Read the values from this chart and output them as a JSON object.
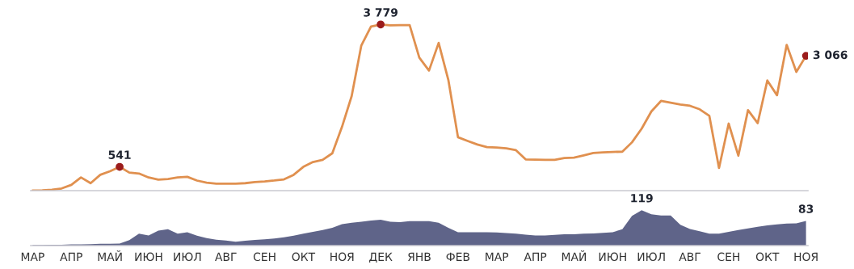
{
  "chart_data": [
    {
      "type": "line",
      "tick_labels": false,
      "grid": false,
      "legend": false,
      "series": [
        {
          "color": "#e0904f",
          "values": [
            0,
            5,
            20,
            50,
            130,
            300,
            170,
            360,
            440,
            541,
            410,
            390,
            300,
            250,
            265,
            300,
            315,
            230,
            180,
            160,
            160,
            160,
            170,
            195,
            210,
            230,
            255,
            360,
            540,
            650,
            700,
            850,
            1450,
            2150,
            3300,
            3730,
            3779,
            3760,
            3765,
            3765,
            3025,
            2730,
            3360,
            2520,
            1215,
            1130,
            1050,
            990,
            980,
            960,
            920,
            710,
            705,
            700,
            700,
            740,
            750,
            800,
            855,
            870,
            880,
            885,
            1100,
            1410,
            1800,
            2040,
            2000,
            1960,
            1930,
            1850,
            1700,
            515,
            1525,
            795,
            1830,
            1535,
            2505,
            2170,
            3315,
            2700,
            3066
          ],
          "value_labels": [
            null,
            null,
            null,
            null,
            null,
            null,
            null,
            null,
            null,
            "541",
            null,
            null,
            null,
            null,
            null,
            null,
            null,
            null,
            null,
            null,
            null,
            null,
            null,
            null,
            null,
            null,
            null,
            null,
            null,
            null,
            null,
            null,
            null,
            null,
            null,
            null,
            "3 779",
            null,
            null,
            null,
            null,
            null,
            null,
            null,
            null,
            null,
            null,
            null,
            null,
            null,
            null,
            null,
            null,
            null,
            null,
            null,
            null,
            null,
            null,
            null,
            null,
            null,
            null,
            null,
            null,
            null,
            null,
            null,
            null,
            null,
            null,
            null,
            null,
            null,
            null,
            null,
            null,
            null,
            null,
            null,
            "3 066"
          ]
        }
      ]
    },
    {
      "type": "area",
      "tick_labels": "x",
      "grid": false,
      "legend": false,
      "categories": [
        "МАР",
        null,
        null,
        null,
        "АПР",
        null,
        null,
        null,
        "МАЙ",
        null,
        null,
        null,
        "ИЮН",
        null,
        null,
        null,
        "ИЮЛ",
        null,
        null,
        null,
        "АВГ",
        null,
        null,
        null,
        "СЕН",
        null,
        null,
        null,
        "ОКТ",
        null,
        null,
        null,
        "НОЯ",
        null,
        null,
        null,
        "ДЕК",
        null,
        null,
        null,
        "ЯНВ",
        null,
        null,
        null,
        "ФЕВ",
        null,
        null,
        null,
        "МАР",
        null,
        null,
        null,
        "АПР",
        null,
        null,
        null,
        "МАЙ",
        null,
        null,
        null,
        "ИЮН",
        null,
        null,
        null,
        "ИЮЛ",
        null,
        null,
        null,
        "АВГ",
        null,
        null,
        null,
        "СЕН",
        null,
        null,
        null,
        "ОКТ",
        null,
        null,
        null,
        "НОЯ"
      ],
      "series": [
        {
          "color": "#5f6489",
          "values": [
            2,
            2,
            3,
            3,
            4,
            4,
            5,
            6,
            6,
            7,
            18,
            40,
            34,
            50,
            55,
            40,
            45,
            33,
            25,
            20,
            17,
            13,
            16,
            19,
            21,
            24,
            28,
            33,
            40,
            46,
            52,
            60,
            72,
            77,
            80,
            84,
            87,
            80,
            79,
            82,
            82,
            82,
            77,
            60,
            45,
            45,
            45,
            45,
            44,
            42,
            40,
            37,
            34,
            34,
            36,
            38,
            38,
            40,
            41,
            43,
            45,
            55,
            100,
            119,
            105,
            101,
            101,
            70,
            56,
            48,
            40,
            40,
            46,
            52,
            58,
            63,
            68,
            71,
            74,
            75,
            83
          ],
          "value_labels": [
            null,
            null,
            null,
            null,
            null,
            null,
            null,
            null,
            null,
            null,
            null,
            null,
            null,
            null,
            null,
            null,
            null,
            null,
            null,
            null,
            null,
            null,
            null,
            null,
            null,
            null,
            null,
            null,
            null,
            null,
            null,
            null,
            null,
            null,
            null,
            null,
            null,
            null,
            null,
            null,
            null,
            null,
            null,
            null,
            null,
            null,
            null,
            null,
            null,
            null,
            null,
            null,
            null,
            null,
            null,
            null,
            null,
            null,
            null,
            null,
            null,
            null,
            null,
            "119",
            null,
            null,
            null,
            null,
            null,
            null,
            null,
            null,
            null,
            null,
            null,
            null,
            null,
            null,
            null,
            null,
            "83"
          ]
        }
      ]
    }
  ]
}
